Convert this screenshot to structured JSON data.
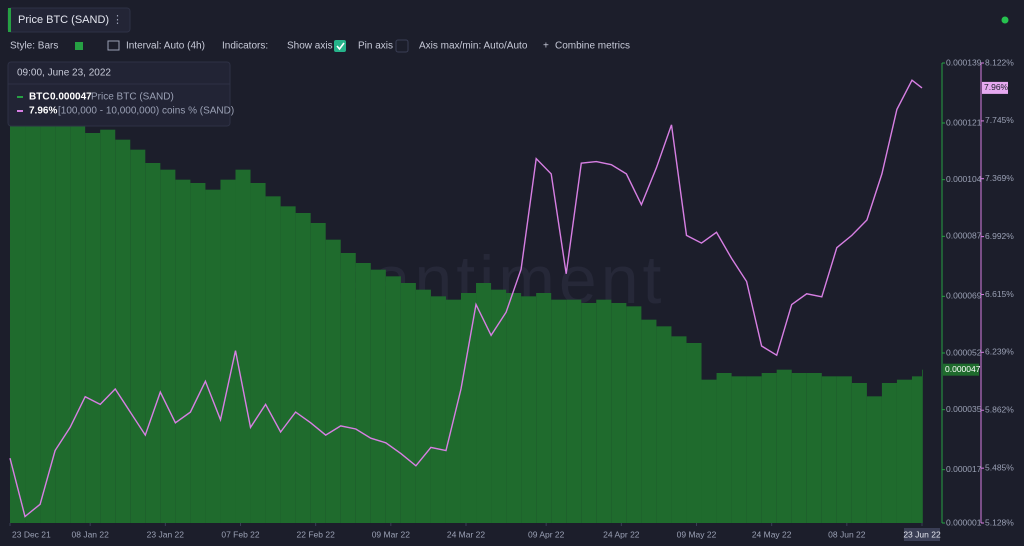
{
  "header": {
    "title": "Price BTC (SAND)"
  },
  "toolbar": [
    "Style: Bars",
    "Interval: Auto (4h)",
    "Indicators:",
    "Show axis",
    "Pin axis",
    "Axis max/min: Auto/Auto",
    "Combine metrics"
  ],
  "tooltip": {
    "date": "09:00, June 23, 2022",
    "unit": "BTC"
  },
  "watermark": "santiment",
  "chart_data": {
    "type": "bar",
    "x": [
      "2021-12-23",
      "2021-12-26",
      "2021-12-29",
      "2022-01-01",
      "2022-01-04",
      "2022-01-07",
      "2022-01-10",
      "2022-01-13",
      "2022-01-16",
      "2022-01-19",
      "2022-01-22",
      "2022-01-25",
      "2022-01-28",
      "2022-01-31",
      "2022-02-03",
      "2022-02-06",
      "2022-02-09",
      "2022-02-12",
      "2022-02-15",
      "2022-02-18",
      "2022-02-21",
      "2022-02-24",
      "2022-02-27",
      "2022-03-02",
      "2022-03-05",
      "2022-03-08",
      "2022-03-11",
      "2022-03-14",
      "2022-03-17",
      "2022-03-20",
      "2022-03-23",
      "2022-03-26",
      "2022-03-29",
      "2022-04-01",
      "2022-04-04",
      "2022-04-07",
      "2022-04-10",
      "2022-04-13",
      "2022-04-16",
      "2022-04-19",
      "2022-04-22",
      "2022-04-25",
      "2022-04-28",
      "2022-05-01",
      "2022-05-04",
      "2022-05-07",
      "2022-05-10",
      "2022-05-13",
      "2022-05-16",
      "2022-05-19",
      "2022-05-22",
      "2022-05-25",
      "2022-05-28",
      "2022-05-31",
      "2022-06-03",
      "2022-06-06",
      "2022-06-09",
      "2022-06-12",
      "2022-06-15",
      "2022-06-18",
      "2022-06-21",
      "2022-06-23"
    ],
    "xlim": [
      "2021-12-23",
      "2022-06-23"
    ],
    "xticks": [
      {
        "value": "2021-12-23",
        "label": "23 Dec 21"
      },
      {
        "value": "2022-01-08",
        "label": "08 Jan 22"
      },
      {
        "value": "2022-01-23",
        "label": "23 Jan 22"
      },
      {
        "value": "2022-02-07",
        "label": "07 Feb 22"
      },
      {
        "value": "2022-02-22",
        "label": "22 Feb 22"
      },
      {
        "value": "2022-03-09",
        "label": "09 Mar 22"
      },
      {
        "value": "2022-03-24",
        "label": "24 Mar 22"
      },
      {
        "value": "2022-04-09",
        "label": "09 Apr 22"
      },
      {
        "value": "2022-04-24",
        "label": "24 Apr 22"
      },
      {
        "value": "2022-05-09",
        "label": "09 May 22"
      },
      {
        "value": "2022-05-24",
        "label": "24 May 22"
      },
      {
        "value": "2022-06-08",
        "label": "08 Jun 22"
      },
      {
        "value": "2022-06-23",
        "label": "23 Jun 22"
      }
    ],
    "ylim": [
      1e-06,
      0.000139
    ],
    "yticks": [
      1e-06,
      1.7e-05,
      3.5e-05,
      5.2e-05,
      6.9e-05,
      8.7e-05,
      0.000104,
      0.000121,
      0.000139
    ],
    "y2lim": [
      5.128,
      8.122
    ],
    "y2ticks": [
      {
        "value": 5.128,
        "label": "5.128%"
      },
      {
        "value": 5.485,
        "label": "5.485%"
      },
      {
        "value": 5.862,
        "label": "5.862%"
      },
      {
        "value": 6.239,
        "label": "6.239%"
      },
      {
        "value": 6.615,
        "label": "6.615%"
      },
      {
        "value": 6.992,
        "label": "6.992%"
      },
      {
        "value": 7.369,
        "label": "7.369%"
      },
      {
        "value": 7.745,
        "label": "7.745%"
      },
      {
        "value": 8.122,
        "label": "8.122%"
      }
    ],
    "series": [
      {
        "name": "Price BTC (SAND)",
        "type": "bar",
        "color": "#1f6b2d",
        "values": [
          0.000121,
          0.000123,
          0.00012,
          0.000124,
          0.000122,
          0.000118,
          0.000119,
          0.000116,
          0.000113,
          0.000109,
          0.000107,
          0.000104,
          0.000103,
          0.000101,
          0.000104,
          0.000107,
          0.000103,
          9.9e-05,
          9.6e-05,
          9.4e-05,
          9.1e-05,
          8.6e-05,
          8.2e-05,
          7.9e-05,
          7.7e-05,
          7.5e-05,
          7.3e-05,
          7.1e-05,
          6.9e-05,
          6.8e-05,
          7e-05,
          7.3e-05,
          7.1e-05,
          7e-05,
          6.9e-05,
          7e-05,
          6.8e-05,
          6.8e-05,
          6.7e-05,
          6.8e-05,
          6.7e-05,
          6.6e-05,
          6.2e-05,
          6e-05,
          5.7e-05,
          5.5e-05,
          4.4e-05,
          4.6e-05,
          4.5e-05,
          4.5e-05,
          4.6e-05,
          4.7e-05,
          4.6e-05,
          4.6e-05,
          4.5e-05,
          4.5e-05,
          4.3e-05,
          3.9e-05,
          4.3e-05,
          4.4e-05,
          4.5e-05,
          4.7e-05
        ]
      },
      {
        "name": "[100,000 - 10,000,000) coins % (SAND)",
        "type": "line",
        "axis": "y2",
        "color": "#d77fe3",
        "values": [
          5.55,
          5.17,
          5.25,
          5.6,
          5.75,
          5.95,
          5.9,
          6.0,
          5.85,
          5.7,
          5.98,
          5.78,
          5.85,
          6.05,
          5.8,
          6.25,
          5.75,
          5.9,
          5.72,
          5.85,
          5.78,
          5.7,
          5.76,
          5.74,
          5.68,
          5.65,
          5.58,
          5.5,
          5.62,
          5.6,
          6.0,
          6.55,
          6.35,
          6.5,
          6.78,
          7.5,
          7.4,
          6.75,
          7.47,
          7.48,
          7.46,
          7.4,
          7.2,
          7.44,
          7.72,
          7.0,
          6.95,
          7.02,
          6.85,
          6.7,
          6.28,
          6.22,
          6.55,
          6.62,
          6.6,
          6.92,
          7.0,
          7.1,
          7.4,
          7.82,
          8.01,
          7.96
        ],
        "value_labels": [
          null,
          null,
          null,
          null,
          null,
          null,
          null,
          null,
          null,
          null,
          null,
          null,
          null,
          null,
          null,
          null,
          null,
          null,
          null,
          null,
          null,
          null,
          null,
          null,
          null,
          null,
          null,
          null,
          null,
          null,
          null,
          null,
          null,
          null,
          null,
          null,
          null,
          null,
          null,
          null,
          null,
          null,
          null,
          null,
          null,
          null,
          null,
          null,
          null,
          null,
          null,
          null,
          null,
          null,
          null,
          null,
          null,
          null,
          null,
          null,
          null,
          "7.96%"
        ]
      }
    ]
  }
}
